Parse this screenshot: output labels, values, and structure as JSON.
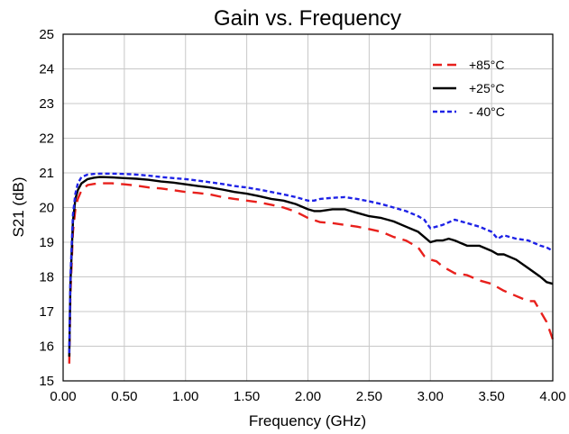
{
  "chart_data": {
    "type": "line",
    "title": "Gain vs. Frequency",
    "xlabel": "Frequency (GHz)",
    "ylabel": "S21 (dB)",
    "xlim": [
      0,
      4
    ],
    "ylim": [
      15,
      25
    ],
    "xticks": [
      0,
      0.5,
      1,
      1.5,
      2,
      2.5,
      3,
      3.5,
      4
    ],
    "xtick_labels": [
      "0.00",
      "0.50",
      "1.00",
      "1.50",
      "2.00",
      "2.50",
      "3.00",
      "3.50",
      "4.00"
    ],
    "yticks": [
      15,
      16,
      17,
      18,
      19,
      20,
      21,
      22,
      23,
      24,
      25
    ],
    "ytick_labels": [
      "15",
      "16",
      "17",
      "18",
      "19",
      "20",
      "21",
      "22",
      "23",
      "24",
      "25"
    ],
    "grid": true,
    "legend_position": "top-right",
    "series": [
      {
        "name": "+85°C",
        "color": "#e8201c",
        "dash": "dashed",
        "x": [
          0.05,
          0.06,
          0.08,
          0.1,
          0.12,
          0.15,
          0.2,
          0.25,
          0.3,
          0.4,
          0.5,
          0.6,
          0.7,
          0.8,
          0.9,
          1.0,
          1.1,
          1.2,
          1.3,
          1.4,
          1.5,
          1.6,
          1.7,
          1.8,
          1.9,
          2.0,
          2.1,
          2.2,
          2.3,
          2.4,
          2.5,
          2.6,
          2.7,
          2.8,
          2.9,
          2.95,
          3.0,
          3.05,
          3.1,
          3.2,
          3.3,
          3.4,
          3.5,
          3.6,
          3.7,
          3.8,
          3.85,
          3.9,
          3.95,
          4.0
        ],
        "y": [
          15.5,
          17.5,
          19.3,
          19.95,
          20.25,
          20.5,
          20.65,
          20.68,
          20.7,
          20.7,
          20.67,
          20.63,
          20.58,
          20.55,
          20.5,
          20.45,
          20.42,
          20.38,
          20.3,
          20.25,
          20.2,
          20.15,
          20.08,
          20.0,
          19.88,
          19.7,
          19.58,
          19.55,
          19.5,
          19.45,
          19.38,
          19.3,
          19.15,
          19.05,
          18.85,
          18.6,
          18.5,
          18.45,
          18.3,
          18.1,
          18.05,
          17.9,
          17.8,
          17.6,
          17.45,
          17.3,
          17.3,
          17.0,
          16.7,
          16.2
        ]
      },
      {
        "name": "+25°C",
        "color": "#000000",
        "dash": "solid",
        "x": [
          0.05,
          0.06,
          0.08,
          0.1,
          0.12,
          0.15,
          0.2,
          0.25,
          0.3,
          0.4,
          0.5,
          0.6,
          0.7,
          0.8,
          0.9,
          1.0,
          1.1,
          1.2,
          1.3,
          1.4,
          1.5,
          1.6,
          1.7,
          1.8,
          1.9,
          2.0,
          2.05,
          2.1,
          2.2,
          2.3,
          2.4,
          2.5,
          2.6,
          2.7,
          2.8,
          2.9,
          2.95,
          3.0,
          3.05,
          3.1,
          3.15,
          3.2,
          3.3,
          3.4,
          3.5,
          3.55,
          3.6,
          3.7,
          3.8,
          3.9,
          3.95,
          4.0
        ],
        "y": [
          15.7,
          17.8,
          19.6,
          20.25,
          20.5,
          20.7,
          20.82,
          20.86,
          20.88,
          20.87,
          20.85,
          20.83,
          20.8,
          20.75,
          20.72,
          20.67,
          20.62,
          20.58,
          20.52,
          20.45,
          20.4,
          20.33,
          20.25,
          20.2,
          20.1,
          19.95,
          19.9,
          19.9,
          19.95,
          19.95,
          19.85,
          19.75,
          19.7,
          19.6,
          19.45,
          19.3,
          19.15,
          19.0,
          19.05,
          19.05,
          19.1,
          19.05,
          18.9,
          18.9,
          18.75,
          18.65,
          18.65,
          18.5,
          18.25,
          18.0,
          17.85,
          17.8
        ]
      },
      {
        "name": "- 40°C",
        "color": "#1e22e6",
        "dash": "short-dashed",
        "x": [
          0.05,
          0.06,
          0.08,
          0.1,
          0.12,
          0.15,
          0.2,
          0.25,
          0.3,
          0.4,
          0.5,
          0.6,
          0.7,
          0.8,
          0.9,
          1.0,
          1.1,
          1.2,
          1.3,
          1.4,
          1.5,
          1.6,
          1.7,
          1.8,
          1.9,
          2.0,
          2.05,
          2.1,
          2.2,
          2.3,
          2.4,
          2.5,
          2.6,
          2.7,
          2.8,
          2.9,
          2.95,
          3.0,
          3.05,
          3.1,
          3.2,
          3.3,
          3.4,
          3.5,
          3.55,
          3.6,
          3.7,
          3.8,
          3.9,
          3.95,
          4.0
        ],
        "y": [
          15.8,
          18.0,
          19.8,
          20.4,
          20.7,
          20.88,
          20.95,
          20.97,
          20.98,
          20.98,
          20.97,
          20.95,
          20.92,
          20.88,
          20.85,
          20.82,
          20.78,
          20.73,
          20.68,
          20.62,
          20.58,
          20.52,
          20.45,
          20.38,
          20.3,
          20.2,
          20.2,
          20.25,
          20.28,
          20.3,
          20.25,
          20.18,
          20.1,
          20.0,
          19.9,
          19.75,
          19.65,
          19.4,
          19.45,
          19.5,
          19.65,
          19.55,
          19.45,
          19.3,
          19.1,
          19.2,
          19.1,
          19.05,
          18.9,
          18.85,
          18.75
        ]
      }
    ]
  }
}
